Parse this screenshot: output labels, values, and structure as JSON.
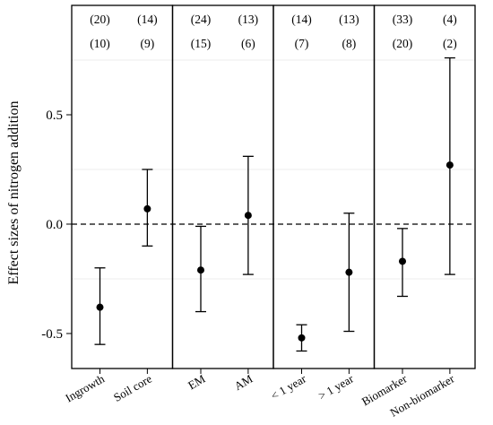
{
  "chart_data": {
    "type": "scatter",
    "ylabel": "Effect sizes of nitrogen addition",
    "ylim": [
      -0.66,
      1.0
    ],
    "y_ticks": [
      {
        "value": 0.5,
        "label": "0.5"
      },
      {
        "value": 0.0,
        "label": "0.0"
      },
      {
        "value": -0.5,
        "label": "-0.5"
      }
    ],
    "reference_line": 0,
    "grid": "faint horizontal lines",
    "panels": [
      {
        "categories": [
          {
            "label": "Ingrowth",
            "estimate": -0.38,
            "ci": [
              -0.55,
              -0.2
            ],
            "n_top": "(20)",
            "n_bottom": "(10)"
          },
          {
            "label": "Soil core",
            "estimate": 0.07,
            "ci": [
              -0.1,
              0.25
            ],
            "n_top": "(14)",
            "n_bottom": "(9)"
          }
        ]
      },
      {
        "categories": [
          {
            "label": "EM",
            "estimate": -0.21,
            "ci": [
              -0.4,
              -0.01
            ],
            "n_top": "(24)",
            "n_bottom": "(15)"
          },
          {
            "label": "AM",
            "estimate": 0.04,
            "ci": [
              -0.23,
              0.31
            ],
            "n_top": "(13)",
            "n_bottom": "(6)"
          }
        ]
      },
      {
        "categories": [
          {
            "label": "< 1 year",
            "estimate": -0.52,
            "ci": [
              -0.58,
              -0.46
            ],
            "n_top": "(14)",
            "n_bottom": "(7)"
          },
          {
            "label": "> 1 year",
            "estimate": -0.22,
            "ci": [
              -0.49,
              0.05
            ],
            "n_top": "(13)",
            "n_bottom": "(8)"
          }
        ]
      },
      {
        "categories": [
          {
            "label": "Biomarker",
            "estimate": -0.17,
            "ci": [
              -0.33,
              -0.02
            ],
            "n_top": "(33)",
            "n_bottom": "(20)"
          },
          {
            "label": "Non-biomarker",
            "estimate": 0.27,
            "ci": [
              -0.23,
              0.76
            ],
            "n_top": "(4)",
            "n_bottom": "(2)"
          }
        ]
      }
    ]
  }
}
